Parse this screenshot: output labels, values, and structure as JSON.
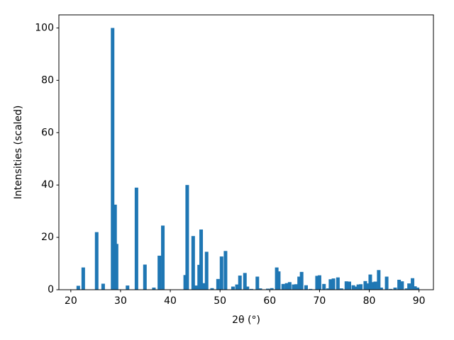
{
  "chart_data": {
    "type": "bar",
    "xlabel": "2θ (°)",
    "ylabel": "Intensities (scaled)",
    "x": [
      21.5,
      22.5,
      25.2,
      26.5,
      28.4,
      28.9,
      29.2,
      31.4,
      33.2,
      34.9,
      36.7,
      37.8,
      38.5,
      43.0,
      43.4,
      44.6,
      45.2,
      45.8,
      46.2,
      46.8,
      47.3,
      48.4,
      49.6,
      50.3,
      51.1,
      52.6,
      53.4,
      54.0,
      55.0,
      55.5,
      56.3,
      57.5,
      58.1,
      59.6,
      60.4,
      61.4,
      61.8,
      62.7,
      63.4,
      64.0,
      64.8,
      65.3,
      65.9,
      66.4,
      67.3,
      68.2,
      69.5,
      70.0,
      70.9,
      71.7,
      72.2,
      72.8,
      73.7,
      74.4,
      75.4,
      76.0,
      76.8,
      77.3,
      77.8,
      78.3,
      79.2,
      79.7,
      80.2,
      80.7,
      81.2,
      81.9,
      82.4,
      83.5,
      84.3,
      85.2,
      86.0,
      86.6,
      87.5,
      88.0,
      88.7,
      89.2,
      89.7
    ],
    "values": [
      1.5,
      8.5,
      22,
      2.3,
      100,
      32.5,
      17.5,
      1.6,
      39,
      9.6,
      0.8,
      13,
      24.5,
      5.6,
      40,
      20.5,
      1.6,
      9.5,
      23,
      2.5,
      14.5,
      0.6,
      4.1,
      12.7,
      14.8,
      1.2,
      2,
      5.4,
      6.4,
      1.2,
      0.3,
      5,
      0.5,
      0.4,
      0.6,
      8.5,
      7,
      2.2,
      2.5,
      2.9,
      2,
      2.1,
      5,
      6.8,
      1.7,
      0.3,
      5.3,
      5.5,
      2.2,
      0.5,
      4,
      4.3,
      4.7,
      0.5,
      3.2,
      3.1,
      1.7,
      1.2,
      2,
      2.1,
      3.3,
      2.4,
      5.8,
      2.9,
      3.1,
      7.5,
      0.8,
      5,
      0.3,
      0.8,
      3.8,
      3.2,
      0.5,
      2.4,
      4.4,
      1.3,
      0.8
    ],
    "color": "#1f77b4",
    "xlim": [
      17.6,
      92.9
    ],
    "xticks": [
      20,
      30,
      40,
      50,
      60,
      70,
      80,
      90
    ],
    "ylim": [
      0,
      105
    ],
    "yticks": [
      0,
      20,
      40,
      60,
      80,
      100
    ],
    "grid": false
  }
}
